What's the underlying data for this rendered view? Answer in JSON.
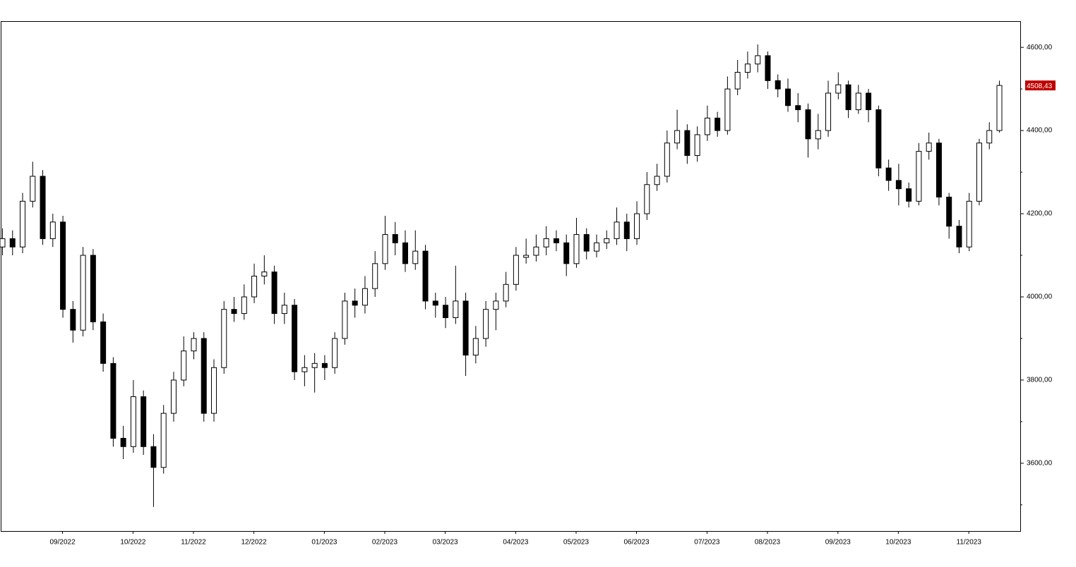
{
  "chart_data": {
    "type": "candlestick",
    "categories": [
      null,
      null,
      null,
      null,
      null,
      null,
      "09/2022",
      null,
      null,
      null,
      null,
      null,
      null,
      "10/2022",
      null,
      null,
      null,
      null,
      null,
      "11/2022",
      null,
      null,
      null,
      null,
      null,
      "12/2022",
      null,
      null,
      null,
      null,
      null,
      null,
      "01/2023",
      null,
      null,
      null,
      null,
      null,
      "02/2023",
      null,
      null,
      null,
      null,
      null,
      "03/2023",
      null,
      null,
      null,
      null,
      null,
      null,
      "04/2023",
      null,
      null,
      null,
      null,
      null,
      "05/2023",
      null,
      null,
      null,
      null,
      null,
      "06/2023",
      null,
      null,
      null,
      null,
      null,
      null,
      "07/2023",
      null,
      null,
      null,
      null,
      null,
      "08/2023",
      null,
      null,
      null,
      null,
      null,
      null,
      "09/2023",
      null,
      null,
      null,
      null,
      null,
      "10/2023",
      null,
      null,
      null,
      null,
      null,
      null,
      "11/2023",
      null,
      null,
      null
    ],
    "open": [
      4120,
      4140,
      4120,
      4230,
      4290,
      4140,
      4180,
      3970,
      3920,
      4100,
      3940,
      3840,
      3660,
      3640,
      3760,
      3640,
      3590,
      3720,
      3800,
      3870,
      3900,
      3720,
      3830,
      3970,
      3960,
      4000,
      4050,
      4060,
      3960,
      3980,
      3820,
      3830,
      3840,
      3830,
      3900,
      3990,
      3980,
      4020,
      4080,
      4150,
      4130,
      4080,
      4110,
      3990,
      3980,
      3950,
      3990,
      3860,
      3900,
      3970,
      3990,
      4030,
      4095,
      4100,
      4120,
      4140,
      4130,
      4080,
      4150,
      4110,
      4130,
      4140,
      4180,
      4140,
      4200,
      4270,
      4290,
      4370,
      4400,
      4340,
      4390,
      4430,
      4400,
      4500,
      4540,
      4560,
      4580,
      4520,
      4500,
      4460,
      4450,
      4380,
      4400,
      4490,
      4510,
      4450,
      4490,
      4450,
      4310,
      4280,
      4260,
      4230,
      4350,
      4370,
      4240,
      4170,
      4120,
      4230,
      4370,
      4400
    ],
    "high": [
      4165,
      4160,
      4250,
      4325,
      4305,
      4200,
      4195,
      3990,
      4120,
      4115,
      3960,
      3855,
      3690,
      3800,
      3775,
      3670,
      3740,
      3820,
      3905,
      3915,
      3915,
      3850,
      3990,
      4000,
      4030,
      4080,
      4100,
      4075,
      4010,
      3995,
      3860,
      3865,
      3860,
      3915,
      4010,
      4020,
      4050,
      4110,
      4195,
      4180,
      4160,
      4160,
      4125,
      4010,
      4000,
      4075,
      4010,
      3930,
      3990,
      4010,
      4060,
      4120,
      4140,
      4150,
      4170,
      4160,
      4150,
      4190,
      4165,
      4150,
      4160,
      4215,
      4200,
      4230,
      4300,
      4320,
      4400,
      4450,
      4415,
      4410,
      4460,
      4445,
      4530,
      4570,
      4590,
      4607,
      4590,
      4535,
      4525,
      4490,
      4465,
      4440,
      4520,
      4540,
      4520,
      4510,
      4500,
      4460,
      4330,
      4320,
      4275,
      4370,
      4395,
      4380,
      4250,
      4185,
      4250,
      4380,
      4420,
      4520
    ],
    "low": [
      4100,
      4100,
      4105,
      4215,
      4125,
      4120,
      3950,
      3890,
      3905,
      3920,
      3820,
      3640,
      3610,
      3625,
      3620,
      3495,
      3575,
      3700,
      3785,
      3850,
      3700,
      3700,
      3815,
      3940,
      3945,
      3985,
      4030,
      3935,
      3935,
      3800,
      3785,
      3770,
      3800,
      3815,
      3885,
      3950,
      3960,
      4000,
      4065,
      4100,
      4060,
      4065,
      3970,
      3950,
      3925,
      3935,
      3810,
      3840,
      3880,
      3920,
      3975,
      4015,
      4080,
      4085,
      4100,
      4110,
      4050,
      4070,
      4090,
      4095,
      4115,
      4125,
      4110,
      4125,
      4185,
      4255,
      4275,
      4355,
      4320,
      4325,
      4375,
      4385,
      4390,
      4485,
      4525,
      4540,
      4500,
      4480,
      4445,
      4420,
      4335,
      4355,
      4385,
      4475,
      4430,
      4440,
      4420,
      4290,
      4255,
      4220,
      4215,
      4220,
      4330,
      4220,
      4140,
      4105,
      4110,
      4220,
      4355,
      4395
    ],
    "close": [
      4140,
      4120,
      4230,
      4290,
      4140,
      4180,
      3970,
      3920,
      4100,
      3940,
      3840,
      3660,
      3640,
      3760,
      3640,
      3590,
      3720,
      3800,
      3870,
      3900,
      3720,
      3830,
      3970,
      3960,
      4000,
      4050,
      4060,
      3960,
      3980,
      3820,
      3830,
      3840,
      3830,
      3900,
      3990,
      3980,
      4020,
      4080,
      4150,
      4130,
      4080,
      4110,
      3990,
      3980,
      3950,
      3990,
      3860,
      3900,
      3970,
      3990,
      4030,
      4100,
      4100,
      4120,
      4140,
      4130,
      4080,
      4150,
      4110,
      4130,
      4140,
      4180,
      4140,
      4200,
      4270,
      4290,
      4370,
      4400,
      4340,
      4390,
      4430,
      4400,
      4500,
      4540,
      4560,
      4580,
      4520,
      4500,
      4460,
      4450,
      4380,
      4400,
      4490,
      4510,
      4450,
      4490,
      4450,
      4310,
      4280,
      4260,
      4230,
      4350,
      4370,
      4240,
      4170,
      4120,
      4230,
      4370,
      4400,
      4508.43
    ],
    "last_price": {
      "value": 4508.43,
      "label": "4508,43"
    },
    "ylim": [
      3437,
      4663
    ],
    "yticks": [
      {
        "value": 3600,
        "label": "3600,00"
      },
      {
        "value": 3800,
        "label": "3800,00"
      },
      {
        "value": 4000,
        "label": "4000,00"
      },
      {
        "value": 4200,
        "label": "4200,00"
      },
      {
        "value": 4400,
        "label": "4400,00"
      },
      {
        "value": 4600,
        "label": "4600,00"
      }
    ],
    "minor_yticks": [
      3500,
      3700,
      3900,
      4100,
      4300,
      4500
    ],
    "up_color": "#ffffff",
    "down_color": "#000000",
    "last_price_color": "#c00000"
  }
}
